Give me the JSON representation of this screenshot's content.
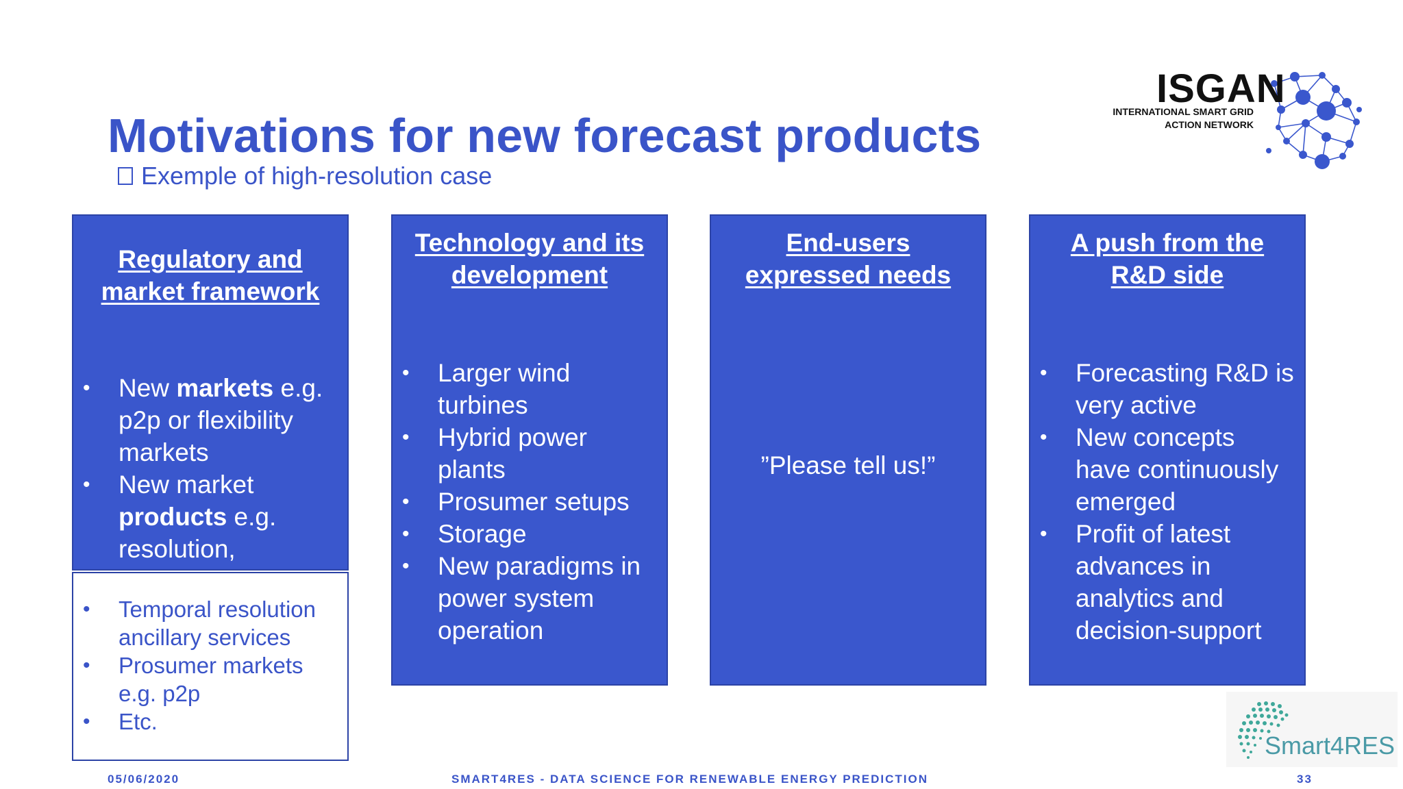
{
  "slide": {
    "title": "Motivations for new forecast products",
    "subtitle": "Exemple of high-resolution case"
  },
  "logos": {
    "isgan_word": "ISGAN",
    "isgan_sub_line1": "INTERNATIONAL SMART GRID",
    "isgan_sub_line2": "ACTION NETWORK",
    "smart4res": "Smart4RES",
    "brand_blue": "#3a57cd",
    "smart_teal": "#4a9aa6"
  },
  "panels": [
    {
      "heading_line1": "Regulatory and",
      "heading_line2": "market framework",
      "items": [
        {
          "pre": "New ",
          "bold": "markets",
          "post": " e.g. p2p or flexibility markets"
        },
        {
          "pre": "New market ",
          "bold": "products",
          "post": " e.g. resolution,"
        }
      ]
    },
    {
      "heading_line1": "Technology and its",
      "heading_line2": "development",
      "items": [
        {
          "text": "Larger wind turbines"
        },
        {
          "text": "Hybrid power plants"
        },
        {
          "text": "Prosumer setups"
        },
        {
          "text": "Storage"
        },
        {
          "text": "New paradigms in power system operation"
        }
      ]
    },
    {
      "heading_line1": "End-users",
      "heading_line2": "expressed needs",
      "quote": "”Please tell us!”"
    },
    {
      "heading_line1": "A push from the",
      "heading_line2": "R&D side",
      "items": [
        {
          "text": "Forecasting R&D is very active"
        },
        {
          "text": "New concepts have continuously emerged"
        },
        {
          "text": "Profit of latest advances in analytics and decision-support"
        }
      ]
    }
  ],
  "popup": {
    "items": [
      {
        "line1": "Temporal resolution",
        "line2": "ancillary services"
      },
      {
        "line1": "Prosumer markets",
        "line2": "e.g. p2p"
      },
      {
        "line1": "Etc.",
        "line2": ""
      }
    ]
  },
  "footer": {
    "date": "05/06/2020",
    "center": "SMART4RES - DATA SCIENCE FOR RENEWABLE ENERGY PREDICTION",
    "page": "33"
  }
}
